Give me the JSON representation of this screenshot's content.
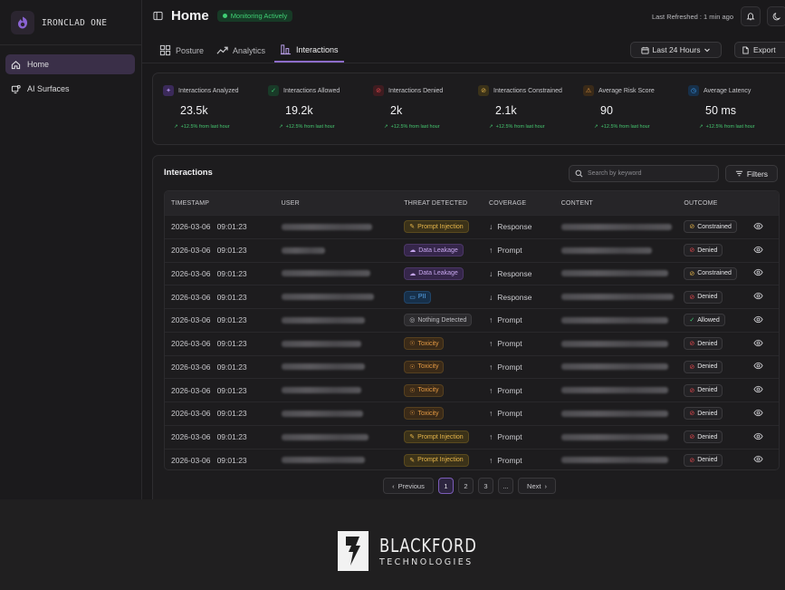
{
  "app": {
    "name": "IRONCLAD ONE"
  },
  "sidebar": {
    "items": [
      {
        "label": "Home",
        "icon": "home-icon",
        "active": true
      },
      {
        "label": "AI Surfaces",
        "icon": "ai-surfaces-icon",
        "active": false
      }
    ]
  },
  "header": {
    "title": "Home",
    "status": "Monitoring Actively",
    "last_refreshed": "Last Refreshed : 1 min ago"
  },
  "tabs": [
    {
      "label": "Posture",
      "icon": "grid-icon",
      "active": false
    },
    {
      "label": "Analytics",
      "icon": "trend-up-icon",
      "active": false
    },
    {
      "label": "Interactions",
      "icon": "bar-chart-icon",
      "active": true
    }
  ],
  "toolbar": {
    "range_label": "Last 24 Hours",
    "export_label": "Export"
  },
  "metrics": [
    {
      "label": "Interactions Analyzed",
      "value": "23.5k",
      "change": "+12.5% from last hour",
      "icon": "sparkle-icon",
      "color": "#8a63d2"
    },
    {
      "label": "Interactions Allowed",
      "value": "19.2k",
      "change": "+12.5% from last hour",
      "icon": "check-icon",
      "color": "#3fcf74"
    },
    {
      "label": "Interactions Denied",
      "value": "2k",
      "change": "+12.5% from last hour",
      "icon": "ban-icon",
      "color": "#e5484d"
    },
    {
      "label": "Interactions Constrained",
      "value": "2.1k",
      "change": "+12.5% from last hour",
      "icon": "constrained-icon",
      "color": "#e6b54a"
    },
    {
      "label": "Average Risk Score",
      "value": "90",
      "change": "+12.5% from last hour",
      "icon": "warning-icon",
      "color": "#e59a43"
    },
    {
      "label": "Average Latency",
      "value": "50 ms",
      "change": "+12.5% from last hour",
      "icon": "clock-icon",
      "color": "#3b9cf0"
    }
  ],
  "interactions": {
    "title": "Interactions",
    "search_placeholder": "Search by keyword",
    "filters_label": "Filters",
    "columns": [
      "TIMESTAMP",
      "USER",
      "THREAT DETECTED",
      "COVERAGE",
      "CONTENT",
      "OUTCOME"
    ],
    "rows": [
      {
        "timestamp": "2026-03-06   09:01:23",
        "threat": "Prompt Injection",
        "threat_type": "prompt",
        "coverage": "Response",
        "outcome": "Constrained"
      },
      {
        "timestamp": "2026-03-06   09:01:23",
        "threat": "Data Leakage",
        "threat_type": "leak",
        "coverage": "Prompt",
        "outcome": "Denied"
      },
      {
        "timestamp": "2026-03-06   09:01:23",
        "threat": "Data Leakage",
        "threat_type": "leak",
        "coverage": "Response",
        "outcome": "Constrained"
      },
      {
        "timestamp": "2026-03-06   09:01:23",
        "threat": "PII",
        "threat_type": "pii",
        "coverage": "Response",
        "outcome": "Denied"
      },
      {
        "timestamp": "2026-03-06   09:01:23",
        "threat": "Nothing Detected",
        "threat_type": "none",
        "coverage": "Prompt",
        "outcome": "Allowed"
      },
      {
        "timestamp": "2026-03-06   09:01:23",
        "threat": "Toxicity",
        "threat_type": "tox",
        "coverage": "Prompt",
        "outcome": "Denied"
      },
      {
        "timestamp": "2026-03-06   09:01:23",
        "threat": "Toxicity",
        "threat_type": "tox",
        "coverage": "Prompt",
        "outcome": "Denied"
      },
      {
        "timestamp": "2026-03-06   09:01:23",
        "threat": "Toxicity",
        "threat_type": "tox",
        "coverage": "Prompt",
        "outcome": "Denied"
      },
      {
        "timestamp": "2026-03-06   09:01:23",
        "threat": "Toxicity",
        "threat_type": "tox",
        "coverage": "Prompt",
        "outcome": "Denied"
      },
      {
        "timestamp": "2026-03-06   09:01:23",
        "threat": "Prompt Injection",
        "threat_type": "prompt",
        "coverage": "Prompt",
        "outcome": "Denied"
      },
      {
        "timestamp": "2026-03-06   09:01:23",
        "threat": "Prompt Injection",
        "threat_type": "prompt",
        "coverage": "Prompt",
        "outcome": "Denied"
      }
    ]
  },
  "pagination": {
    "previous": "Previous",
    "pages": [
      "1",
      "2",
      "3",
      "..."
    ],
    "next": "Next"
  },
  "footer": {
    "brand": "BLACKFORD",
    "subtitle": "TECHNOLOGIES"
  }
}
